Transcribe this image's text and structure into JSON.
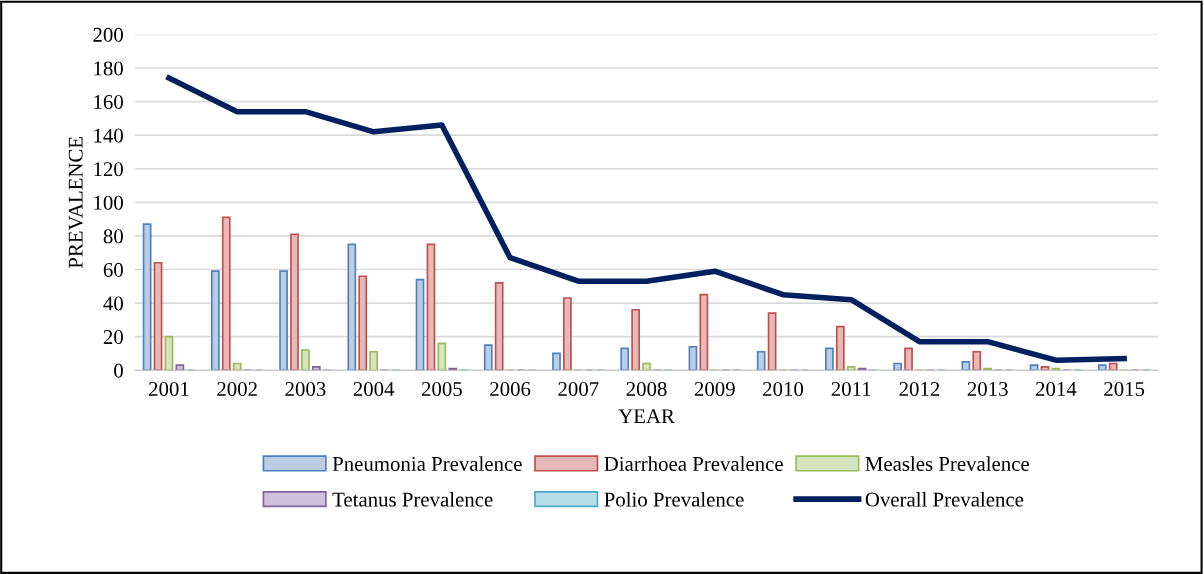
{
  "chart_data": {
    "type": "bar",
    "xlabel": "YEAR",
    "ylabel": "PREVALENCE",
    "categories": [
      "2001",
      "2002",
      "2003",
      "2004",
      "2005",
      "2006",
      "2007",
      "2008",
      "2009",
      "2010",
      "2011",
      "2012",
      "2013",
      "2014",
      "2015"
    ],
    "series": [
      {
        "name": "Pneumonia Prevalence",
        "color": "#4f81bd",
        "values": [
          87,
          59,
          59,
          75,
          54,
          15,
          10,
          13,
          14,
          11,
          13,
          4,
          5,
          3,
          3
        ]
      },
      {
        "name": "Diarrhoea Prevalence",
        "color": "#c0504d",
        "values": [
          64,
          91,
          81,
          56,
          75,
          52,
          43,
          36,
          45,
          34,
          26,
          13,
          11,
          2,
          4
        ]
      },
      {
        "name": "Measles Prevalence",
        "color": "#9bbb59",
        "values": [
          20,
          4,
          12,
          11,
          16,
          0,
          0,
          4,
          0,
          0,
          2,
          0,
          1,
          1,
          0
        ]
      },
      {
        "name": "Tetanus Prevalence",
        "color": "#8064a2",
        "values": [
          3,
          0,
          2,
          0,
          1,
          0,
          0,
          0,
          0,
          0,
          1,
          0,
          0,
          0,
          0
        ]
      },
      {
        "name": "Polio Prevalence",
        "color": "#4bacc6",
        "values": [
          0,
          0,
          0,
          0,
          0,
          0,
          0,
          0,
          0,
          0,
          0,
          0,
          0,
          0,
          0
        ]
      },
      {
        "name": "Overall Prevalence",
        "type": "line",
        "color": "#002060",
        "values": [
          174,
          154,
          154,
          142,
          146,
          67,
          53,
          53,
          59,
          45,
          42,
          17,
          17,
          6,
          7
        ]
      }
    ],
    "ylim": [
      0,
      200
    ],
    "yticks": [
      0,
      20,
      40,
      60,
      80,
      100,
      120,
      140,
      160,
      180,
      200
    ],
    "grid": "y",
    "legend": "bottom",
    "marker": "none",
    "line_style": "solid"
  }
}
